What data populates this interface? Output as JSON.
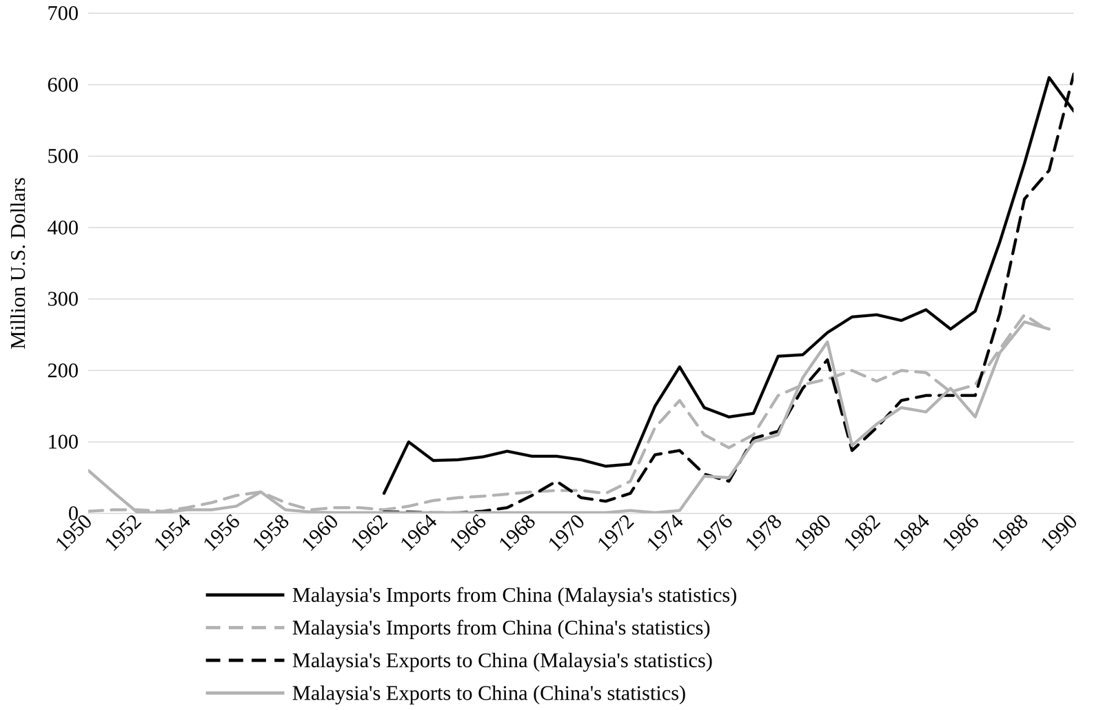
{
  "chart_data": {
    "type": "line",
    "y_label": "Million U.S. Dollars",
    "x": [
      1950,
      1951,
      1952,
      1953,
      1954,
      1955,
      1956,
      1957,
      1958,
      1959,
      1960,
      1961,
      1962,
      1963,
      1964,
      1965,
      1966,
      1967,
      1968,
      1969,
      1970,
      1971,
      1972,
      1973,
      1974,
      1975,
      1976,
      1977,
      1978,
      1979,
      1980,
      1981,
      1982,
      1983,
      1984,
      1985,
      1986,
      1987,
      1988,
      1989,
      1990
    ],
    "xlim": [
      1950,
      1990
    ],
    "xticks": [
      1950,
      1952,
      1954,
      1956,
      1958,
      1960,
      1962,
      1964,
      1966,
      1968,
      1970,
      1972,
      1974,
      1976,
      1978,
      1980,
      1982,
      1984,
      1986,
      1988,
      1990
    ],
    "ylim": [
      0,
      700
    ],
    "yticks": [
      0,
      100,
      200,
      300,
      400,
      500,
      600,
      700
    ],
    "grid": true,
    "legend": "bottom",
    "series": [
      {
        "name": "Malaysia's Imports from China (Malaysia's statistics)",
        "color": "#000000",
        "line_style": "solid",
        "values": [
          null,
          null,
          null,
          null,
          null,
          null,
          null,
          null,
          null,
          null,
          null,
          null,
          28,
          100,
          74,
          75,
          79,
          87,
          80,
          80,
          75,
          66,
          69,
          150,
          205,
          148,
          135,
          140,
          220,
          222,
          253,
          275,
          278,
          270,
          285,
          258,
          283,
          380,
          490,
          610,
          563
        ]
      },
      {
        "name": "Malaysia's Imports from China (China's statistics)",
        "color": "#b3b3b3",
        "line_style": "dashed",
        "values": [
          3,
          5,
          5,
          3,
          8,
          15,
          25,
          30,
          15,
          5,
          8,
          8,
          5,
          10,
          18,
          22,
          24,
          27,
          30,
          32,
          32,
          28,
          45,
          120,
          158,
          110,
          92,
          110,
          165,
          180,
          188,
          200,
          185,
          200,
          197,
          170,
          180,
          230,
          278,
          255,
          null
        ]
      },
      {
        "name": "Malaysia's Exports to China (Malaysia's statistics)",
        "color": "#000000",
        "line_style": "dashed",
        "values": [
          null,
          null,
          null,
          null,
          null,
          null,
          null,
          null,
          null,
          null,
          null,
          null,
          2,
          2,
          1,
          1,
          3,
          8,
          25,
          45,
          22,
          17,
          28,
          82,
          88,
          55,
          45,
          105,
          115,
          175,
          215,
          88,
          120,
          158,
          165,
          165,
          165,
          280,
          440,
          480,
          615
        ]
      },
      {
        "name": "Malaysia's Exports to China (China's statistics)",
        "color": "#b3b3b3",
        "line_style": "solid",
        "values": [
          60,
          30,
          1,
          1,
          5,
          5,
          10,
          30,
          5,
          2,
          1,
          1,
          1,
          1,
          1,
          1,
          1,
          1,
          1,
          1,
          1,
          1,
          4,
          1,
          4,
          52,
          50,
          100,
          110,
          190,
          240,
          95,
          125,
          148,
          142,
          175,
          135,
          225,
          268,
          258,
          null
        ]
      }
    ]
  }
}
